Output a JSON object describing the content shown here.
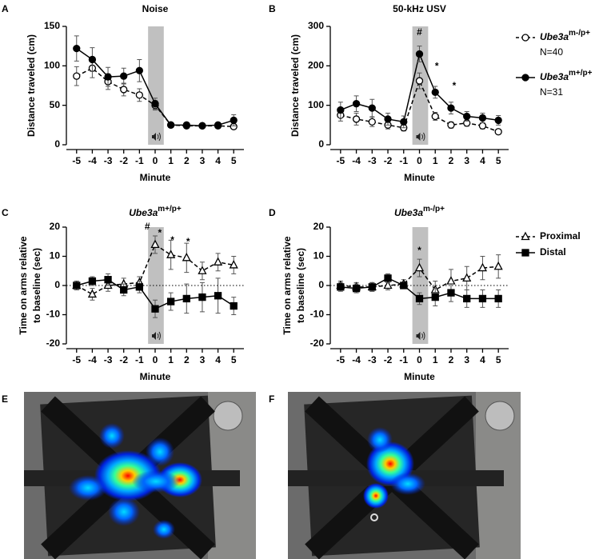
{
  "chart_data": [
    {
      "type": "line",
      "panel": "A",
      "title": {
        "text": "Noise"
      },
      "ylabel": [
        "Distance traveled (cm)"
      ],
      "xlabel": "Minute",
      "x": [
        -5,
        -4,
        -3,
        -2,
        -1,
        0,
        1,
        2,
        3,
        4,
        5
      ],
      "xlim": [
        -5.65,
        5.65
      ],
      "xticks": [
        -5,
        -4,
        -3,
        -2,
        -1,
        0,
        1,
        2,
        3,
        4,
        5
      ],
      "ylim": [
        0,
        150
      ],
      "yticks": [
        0,
        50,
        100,
        150
      ],
      "highlight_x": [
        -0.45,
        0.55
      ],
      "zero_line": false,
      "legend": "none",
      "series": [
        {
          "name": "Ube3a",
          "genotype": "m-/p+",
          "n_label": "N=40",
          "color": "#000000",
          "marker": "circle-open",
          "dashed": true,
          "values": [
            87,
            97,
            80,
            70,
            63,
            50,
            25,
            24,
            24,
            24,
            23
          ],
          "errors": [
            12,
            12,
            10,
            8,
            8,
            6,
            3,
            3,
            2,
            2,
            3
          ]
        },
        {
          "name": "Ube3a",
          "genotype": "m+/p+",
          "n_label": "N=31",
          "color": "#000000",
          "marker": "circle-filled",
          "dashed": false,
          "values": [
            122,
            108,
            86,
            87,
            94,
            52,
            25,
            25,
            24,
            25,
            31
          ],
          "errors": [
            16,
            15,
            12,
            10,
            14,
            7,
            3,
            3,
            3,
            3,
            7
          ]
        }
      ],
      "annotations": []
    },
    {
      "type": "line",
      "panel": "B",
      "title": {
        "text": "50-kHz USV"
      },
      "ylabel": [
        "Distance traveled (cm)"
      ],
      "xlabel": "Minute",
      "x": [
        -5,
        -4,
        -3,
        -2,
        -1,
        0,
        1,
        2,
        3,
        4,
        5
      ],
      "xlim": [
        -5.65,
        5.65
      ],
      "xticks": [
        -5,
        -4,
        -3,
        -2,
        -1,
        0,
        1,
        2,
        3,
        4,
        5
      ],
      "ylim": [
        0,
        300
      ],
      "yticks": [
        0,
        100,
        200,
        300
      ],
      "highlight_x": [
        -0.45,
        0.55
      ],
      "zero_line": false,
      "legend": "outside-right",
      "series": [
        {
          "name": "Ube3a",
          "genotype": "m-/p+",
          "n_label": "N=40",
          "color": "#000000",
          "marker": "circle-open",
          "dashed": true,
          "values": [
            75,
            65,
            58,
            50,
            43,
            162,
            72,
            50,
            55,
            48,
            33
          ],
          "errors": [
            15,
            15,
            12,
            10,
            8,
            20,
            10,
            8,
            8,
            8,
            6
          ]
        },
        {
          "name": "Ube3a",
          "genotype": "m+/p+",
          "n_label": "N=31",
          "color": "#000000",
          "marker": "circle-filled",
          "dashed": false,
          "values": [
            88,
            104,
            93,
            65,
            58,
            230,
            133,
            93,
            72,
            68,
            62
          ],
          "errors": [
            20,
            20,
            22,
            15,
            15,
            20,
            15,
            15,
            12,
            12,
            12
          ]
        }
      ],
      "annotations": [
        {
          "text": "#",
          "x": 0,
          "y": 284
        },
        {
          "text": "*",
          "x": 1.1,
          "y": 210
        },
        {
          "text": "*",
          "x": 2.2,
          "y": 160
        }
      ]
    },
    {
      "type": "line",
      "panel": "C",
      "title": {
        "text": "Ube3a",
        "sup": "m+/p+"
      },
      "ylabel": [
        "Time on arms relative",
        "to baseline (sec)"
      ],
      "xlabel": "Minute",
      "x": [
        -5,
        -4,
        -3,
        -2,
        -1,
        0,
        1,
        2,
        3,
        4,
        5
      ],
      "xlim": [
        -5.65,
        5.65
      ],
      "xticks": [
        -5,
        -4,
        -3,
        -2,
        -1,
        0,
        1,
        2,
        3,
        4,
        5
      ],
      "ylim": [
        -20,
        20
      ],
      "yticks": [
        -20,
        -10,
        0,
        10,
        20
      ],
      "highlight_x": [
        -0.45,
        0.55
      ],
      "zero_line": true,
      "legend": "none",
      "series": [
        {
          "name": "Proximal",
          "color": "#000000",
          "marker": "triangle-open",
          "dashed": true,
          "values": [
            0,
            -3,
            0,
            0.5,
            1,
            14,
            10.5,
            9.5,
            5,
            8,
            7
          ],
          "errors": [
            1.5,
            2,
            2,
            2,
            2,
            3,
            5,
            5,
            3,
            3,
            3
          ]
        },
        {
          "name": "Distal",
          "color": "#000000",
          "marker": "square-filled",
          "dashed": false,
          "values": [
            0,
            1.5,
            2,
            -1.5,
            -0.5,
            -8,
            -5.5,
            -4.5,
            -4,
            -3.5,
            -7
          ],
          "errors": [
            1.5,
            1.5,
            2,
            2,
            2,
            3,
            3,
            5,
            5,
            6,
            3
          ]
        }
      ],
      "annotations": [
        {
          "text": "#",
          "x": -0.5,
          "y": 20
        },
        {
          "text": "*",
          "x": 0.3,
          "y": 19.5
        },
        {
          "text": "*",
          "x": 1.1,
          "y": 17
        },
        {
          "text": "*",
          "x": 2.1,
          "y": 16.5
        }
      ]
    },
    {
      "type": "line",
      "panel": "D",
      "title": {
        "text": "Ube3a",
        "sup": "m-/p+"
      },
      "ylabel": [
        "Time on arms relative",
        "to baseline (sec)"
      ],
      "xlabel": "Minute",
      "x": [
        -5,
        -4,
        -3,
        -2,
        -1,
        0,
        1,
        2,
        3,
        4,
        5
      ],
      "xlim": [
        -5.65,
        5.65
      ],
      "xticks": [
        -5,
        -4,
        -3,
        -2,
        -1,
        0,
        1,
        2,
        3,
        4,
        5
      ],
      "ylim": [
        -20,
        20
      ],
      "yticks": [
        -20,
        -10,
        0,
        10,
        20
      ],
      "highlight_x": [
        -0.45,
        0.55
      ],
      "zero_line": true,
      "legend": "outside-right",
      "series": [
        {
          "name": "Proximal",
          "color": "#000000",
          "marker": "triangle-open",
          "dashed": true,
          "values": [
            0,
            -0.5,
            -0.5,
            0,
            0.5,
            6,
            -1.5,
            1.5,
            2.5,
            6,
            6.5
          ],
          "errors": [
            1.5,
            1.5,
            1.5,
            1.5,
            1.5,
            3,
            3,
            4,
            4,
            4,
            4
          ]
        },
        {
          "name": "Distal",
          "color": "#000000",
          "marker": "square-filled",
          "dashed": false,
          "values": [
            -0.5,
            -1,
            -0.5,
            2.5,
            0,
            -4.5,
            -4,
            -2.5,
            -4.5,
            -4.5,
            -4.5
          ],
          "errors": [
            1.5,
            1.5,
            1.5,
            1.5,
            1,
            2,
            3,
            3,
            3,
            3,
            3
          ]
        }
      ],
      "annotations": [
        {
          "text": "*",
          "x": 0,
          "y": 13.5
        }
      ]
    }
  ],
  "images": [
    {
      "panel": "E"
    },
    {
      "panel": "F"
    }
  ]
}
